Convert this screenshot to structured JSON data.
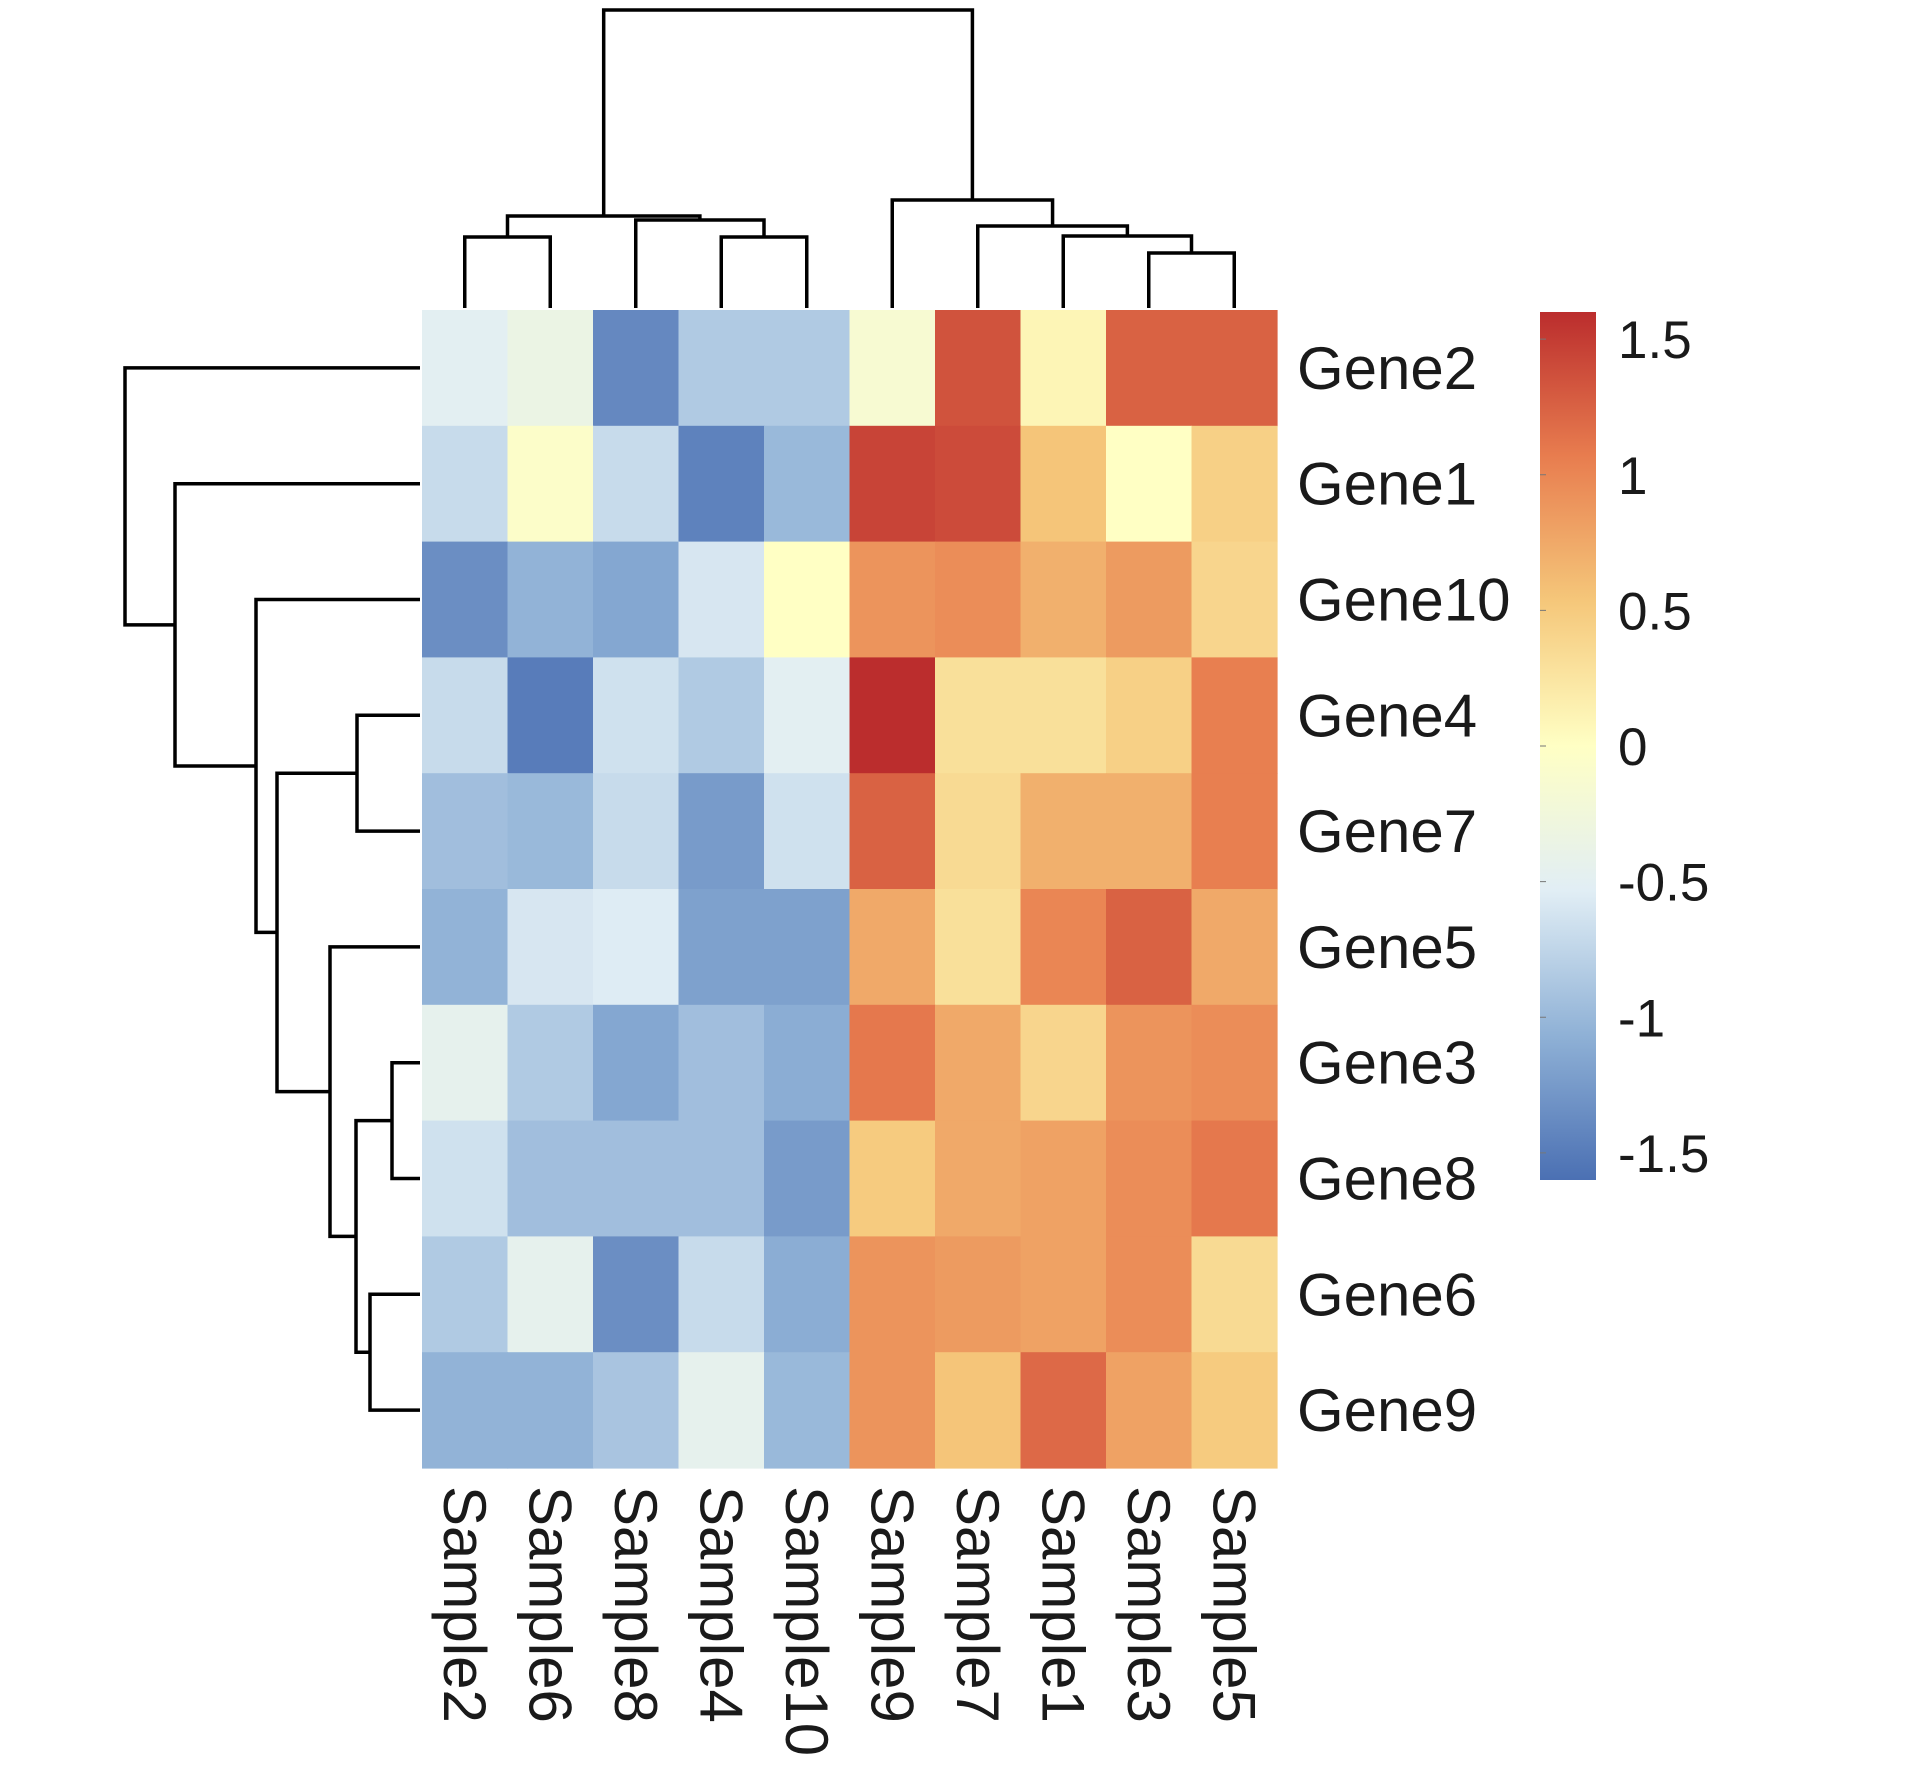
{
  "chart_data": {
    "type": "heatmap",
    "title": "",
    "columns": [
      "Sample2",
      "Sample6",
      "Sample8",
      "Sample4",
      "Sample10",
      "Sample9",
      "Sample7",
      "Sample1",
      "Sample3",
      "Sample5"
    ],
    "rows": [
      "Gene2",
      "Gene1",
      "Gene10",
      "Gene4",
      "Gene7",
      "Gene5",
      "Gene3",
      "Gene8",
      "Gene6",
      "Gene9"
    ],
    "values": [
      [
        -0.5,
        -0.35,
        -1.4,
        -0.85,
        -0.85,
        -0.15,
        1.35,
        0.1,
        1.25,
        1.25
      ],
      [
        -0.7,
        -0.05,
        -0.7,
        -1.45,
        -1.0,
        1.45,
        1.4,
        0.55,
        0.0,
        0.45
      ],
      [
        -1.35,
        -1.05,
        -1.15,
        -0.6,
        0.0,
        0.9,
        0.95,
        0.7,
        0.85,
        0.4
      ],
      [
        -0.7,
        -1.5,
        -0.65,
        -0.85,
        -0.5,
        1.65,
        0.3,
        0.3,
        0.45,
        1.05
      ],
      [
        -0.95,
        -1.0,
        -0.7,
        -1.25,
        -0.65,
        1.25,
        0.35,
        0.7,
        0.7,
        1.05
      ],
      [
        -1.05,
        -0.6,
        -0.55,
        -1.2,
        -1.2,
        0.75,
        0.3,
        1.0,
        1.25,
        0.75
      ],
      [
        -0.45,
        -0.85,
        -1.15,
        -0.95,
        -1.1,
        1.1,
        0.75,
        0.4,
        0.9,
        0.95
      ],
      [
        -0.65,
        -0.95,
        -0.95,
        -0.95,
        -1.25,
        0.5,
        0.75,
        0.8,
        0.95,
        1.1
      ],
      [
        -0.85,
        -0.45,
        -1.35,
        -0.7,
        -1.1,
        0.9,
        0.85,
        0.8,
        0.95,
        0.35
      ],
      [
        -1.05,
        -1.05,
        -0.9,
        -0.45,
        -1.0,
        0.9,
        0.55,
        1.2,
        0.8,
        0.5
      ]
    ],
    "color_scale": {
      "min": -1.6,
      "max": 1.6,
      "stops": [
        "#4b70b3",
        "#8fb1d6",
        "#e1eef5",
        "#ffffc4",
        "#f5c77a",
        "#e87d4f",
        "#bb2d2d"
      ],
      "ticks": [
        1.5,
        1,
        0.5,
        0,
        -0.5,
        -1,
        -1.5
      ],
      "tick_labels": [
        "1.5",
        "1",
        "0.5",
        "0",
        "-0.5",
        "-1",
        "-1.5"
      ]
    },
    "legend_position": "right",
    "row_dendrogram": "left",
    "column_dendrogram": "top",
    "xlabel": "",
    "ylabel": ""
  }
}
